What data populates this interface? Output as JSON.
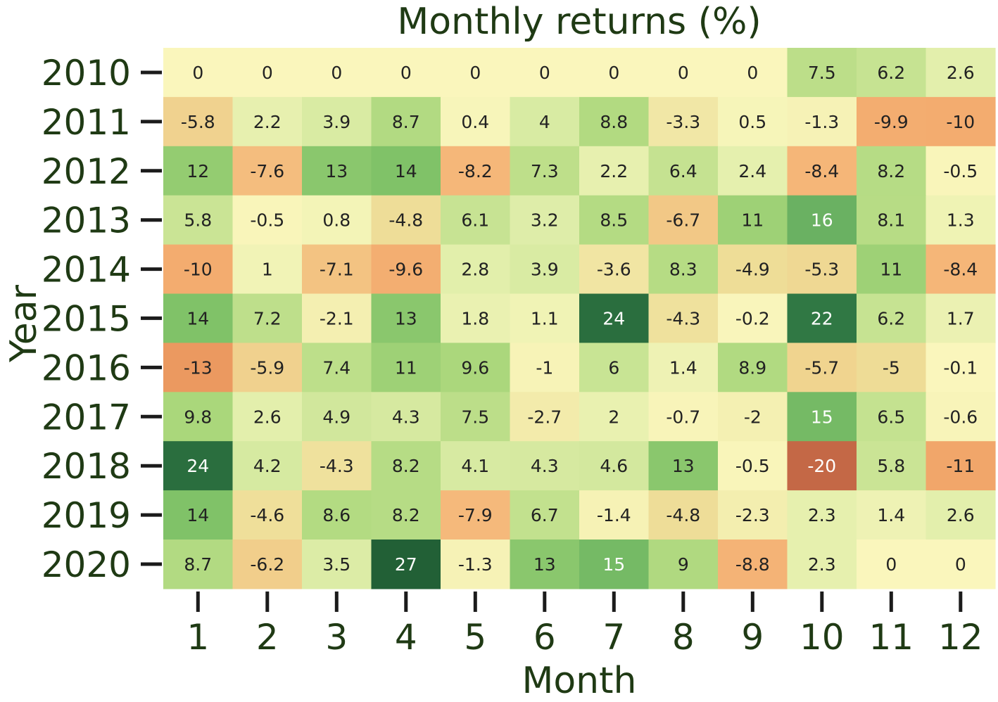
{
  "chart_data": {
    "type": "heatmap",
    "title": "Monthly returns (%)",
    "xlabel": "Month",
    "ylabel": "Year",
    "x": [
      "1",
      "2",
      "3",
      "4",
      "5",
      "6",
      "7",
      "8",
      "9",
      "10",
      "11",
      "12"
    ],
    "y": [
      "2010",
      "2011",
      "2012",
      "2013",
      "2014",
      "2015",
      "2016",
      "2017",
      "2018",
      "2019",
      "2020"
    ],
    "values": [
      [
        "0",
        "0",
        "0",
        "0",
        "0",
        "0",
        "0",
        "0",
        "0",
        "7.5",
        "6.2",
        "2.6"
      ],
      [
        "-5.8",
        "2.2",
        "3.9",
        "8.7",
        "0.4",
        "4",
        "8.8",
        "-3.3",
        "0.5",
        "-1.3",
        "-9.9",
        "-10"
      ],
      [
        "12",
        "-7.6",
        "13",
        "14",
        "-8.2",
        "7.3",
        "2.2",
        "6.4",
        "2.4",
        "-8.4",
        "8.2",
        "-0.5"
      ],
      [
        "5.8",
        "-0.5",
        "0.8",
        "-4.8",
        "6.1",
        "3.2",
        "8.5",
        "-6.7",
        "11",
        "16",
        "8.1",
        "1.3"
      ],
      [
        "-10",
        "1",
        "-7.1",
        "-9.6",
        "2.8",
        "3.9",
        "-3.6",
        "8.3",
        "-4.9",
        "-5.3",
        "11",
        "-8.4"
      ],
      [
        "14",
        "7.2",
        "-2.1",
        "13",
        "1.8",
        "1.1",
        "24",
        "-4.3",
        "-0.2",
        "22",
        "6.2",
        "1.7"
      ],
      [
        "-13",
        "-5.9",
        "7.4",
        "11",
        "9.6",
        "-1",
        "6",
        "1.4",
        "8.9",
        "-5.7",
        "-5",
        "-0.1"
      ],
      [
        "9.8",
        "2.6",
        "4.9",
        "4.3",
        "7.5",
        "-2.7",
        "2",
        "-0.7",
        "-2",
        "15",
        "6.5",
        "-0.6"
      ],
      [
        "24",
        "4.2",
        "-4.3",
        "8.2",
        "4.1",
        "4.3",
        "4.6",
        "13",
        "-0.5",
        "-20",
        "5.8",
        "-11"
      ],
      [
        "14",
        "-4.6",
        "8.6",
        "8.2",
        "-7.9",
        "6.7",
        "-1.4",
        "-4.8",
        "-2.3",
        "2.3",
        "1.4",
        "2.6"
      ],
      [
        "8.7",
        "-6.2",
        "3.5",
        "27",
        "-1.3",
        "13",
        "15",
        "9",
        "-8.8",
        "2.3",
        "0",
        "0"
      ]
    ],
    "colormap": "RdYlGn",
    "grid": false,
    "legend": "none"
  }
}
